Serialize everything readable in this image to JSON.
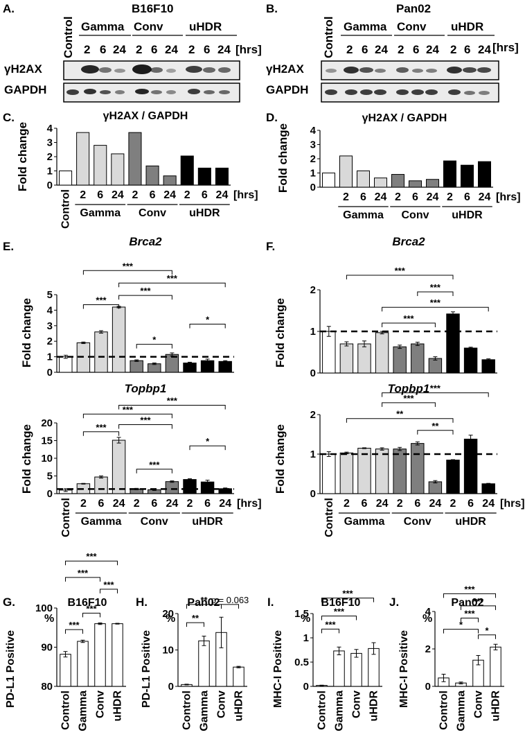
{
  "colors": {
    "white": "#ffffff",
    "light": "#d9d9d9",
    "mid": "#7f7f7f",
    "dark": "#000000"
  },
  "panels": {
    "A": {
      "letter": "A.",
      "cell": "B16F10"
    },
    "B": {
      "letter": "B.",
      "cell": "Pan02"
    },
    "C": {
      "letter": "C."
    },
    "D": {
      "letter": "D."
    },
    "E": {
      "letter": "E."
    },
    "F": {
      "letter": "F."
    },
    "G": {
      "letter": "G.",
      "title": "B16F10"
    },
    "H": {
      "letter": "H.",
      "title": "Pan02"
    },
    "I": {
      "letter": "I.",
      "title": "B16F10"
    },
    "J": {
      "letter": "J.",
      "title": "Pan02"
    }
  },
  "blot": {
    "control": "Control",
    "groups": [
      "Gamma",
      "Conv",
      "uHDR"
    ],
    "times": [
      "2",
      "6",
      "24"
    ],
    "unit": "[hrs]",
    "rows": [
      "γH2AX",
      "GAPDH"
    ]
  },
  "common": {
    "fold_label": "Fold change",
    "control": "Control",
    "groups": [
      "Gamma",
      "Conv",
      "uHDR"
    ],
    "times": [
      "2",
      "6",
      "24"
    ],
    "unit": "[hrs]",
    "pct": "%",
    "flow_cats": [
      "Control",
      "Gamma",
      "Conv",
      "uHDR"
    ]
  },
  "chart_data": [
    {
      "id": "C",
      "type": "bar",
      "title": "γH2AX / GAPDH",
      "ylabel": "Fold change",
      "ylim": [
        0,
        4
      ],
      "yticks": [
        0,
        1,
        2,
        3,
        4
      ],
      "categories": [
        "Control",
        "Gamma 2",
        "Gamma 6",
        "Gamma 24",
        "Conv 2",
        "Conv 6",
        "Conv 24",
        "uHDR 2",
        "uHDR 6",
        "uHDR 24"
      ],
      "values": [
        1.0,
        3.7,
        2.8,
        2.2,
        3.7,
        1.35,
        0.65,
        2.05,
        1.2,
        1.2
      ]
    },
    {
      "id": "D",
      "type": "bar",
      "title": "γH2AX / GAPDH",
      "ylabel": "Fold change",
      "ylim": [
        0,
        4
      ],
      "yticks": [
        0,
        1,
        2,
        3,
        4
      ],
      "categories": [
        "Control",
        "Gamma 2",
        "Gamma 6",
        "Gamma 24",
        "Conv 2",
        "Conv 6",
        "Conv 24",
        "uHDR 2",
        "uHDR 6",
        "uHDR 24"
      ],
      "values": [
        1.0,
        2.2,
        1.15,
        0.65,
        0.9,
        0.45,
        0.55,
        1.85,
        1.55,
        1.8
      ]
    },
    {
      "id": "E1",
      "type": "bar",
      "title": "Brca2",
      "ylabel": "Fold change",
      "ylim": [
        0,
        5
      ],
      "yticks": [
        0,
        1,
        2,
        3,
        4,
        5
      ],
      "ref_line": 1,
      "categories": [
        "Control",
        "Gamma 2",
        "Gamma 6",
        "Gamma 24",
        "Conv 2",
        "Conv 6",
        "Conv 24",
        "uHDR 2",
        "uHDR 6",
        "uHDR 24"
      ],
      "values": [
        1.0,
        1.9,
        2.6,
        4.2,
        0.75,
        0.55,
        1.15,
        0.6,
        0.75,
        0.7
      ],
      "errors": [
        0.1,
        0.05,
        0.08,
        0.05,
        0.05,
        0.05,
        0.1,
        0.05,
        0.1,
        0.05
      ],
      "significance": [
        {
          "a": 1,
          "b": 3,
          "label": "***",
          "y": 4.35
        },
        {
          "a": 4,
          "b": 6,
          "label": "*",
          "y": 1.8
        },
        {
          "a": 7,
          "b": 9,
          "label": "*",
          "y": 3.1
        },
        {
          "a": 3,
          "b": 6,
          "label": "***",
          "y": 4.95
        },
        {
          "a": 1,
          "b": 6,
          "label": "***",
          "y": 6.55
        },
        {
          "a": 3,
          "b": 9,
          "label": "***",
          "y": 5.75
        }
      ]
    },
    {
      "id": "E2",
      "type": "bar",
      "title": "Topbp1",
      "ylabel": "Fold change",
      "ylim": [
        0,
        20
      ],
      "yticks": [
        0,
        5,
        10,
        15,
        20
      ],
      "ref_line": 1.3,
      "categories": [
        "Control",
        "Gamma 2",
        "Gamma 6",
        "Gamma 24",
        "Conv 2",
        "Conv 6",
        "Conv 24",
        "uHDR 2",
        "uHDR 6",
        "uHDR 24"
      ],
      "values": [
        1.0,
        2.8,
        4.7,
        15.1,
        1.3,
        1.1,
        3.4,
        4.0,
        3.3,
        1.4
      ],
      "errors": [
        0.4,
        0.1,
        0.3,
        0.8,
        0.2,
        0.2,
        0.2,
        0.2,
        0.5,
        0.2
      ],
      "significance": [
        {
          "a": 1,
          "b": 3,
          "label": "***",
          "y": 17.5
        },
        {
          "a": 4,
          "b": 6,
          "label": "***",
          "y": 6.9
        },
        {
          "a": 7,
          "b": 9,
          "label": "*",
          "y": 13.5
        },
        {
          "a": 3,
          "b": 6,
          "label": "***",
          "y": 19.5
        },
        {
          "a": 1,
          "b": 6,
          "label": "***",
          "y": 22.5
        },
        {
          "a": 3,
          "b": 9,
          "label": "***",
          "y": 25.0
        }
      ]
    },
    {
      "id": "F1",
      "type": "bar",
      "title": "Brca2",
      "ylabel": "Fold change",
      "ylim": [
        0,
        2
      ],
      "yticks": [
        0,
        1,
        2
      ],
      "ref_line": 1,
      "categories": [
        "Control",
        "Gamma 2",
        "Gamma 6",
        "Gamma 24",
        "Conv 2",
        "Conv 6",
        "Conv 24",
        "uHDR 2",
        "uHDR 6",
        "uHDR 24"
      ],
      "values": [
        1.0,
        0.7,
        0.7,
        0.97,
        0.63,
        0.7,
        0.35,
        1.42,
        0.6,
        0.32
      ],
      "errors": [
        0.12,
        0.05,
        0.07,
        0.03,
        0.04,
        0.04,
        0.04,
        0.05,
        0.02,
        0.02
      ],
      "significance": [
        {
          "a": 3,
          "b": 6,
          "label": "***",
          "y": 1.2
        },
        {
          "a": 3,
          "b": 9,
          "label": "***",
          "y": 1.58
        },
        {
          "a": 5,
          "b": 7,
          "label": "***",
          "y": 1.95
        },
        {
          "a": 1,
          "b": 7,
          "label": "***",
          "y": 2.35
        }
      ]
    },
    {
      "id": "F2",
      "type": "bar",
      "title": "Topbp1",
      "ylabel": "Fold change",
      "ylim": [
        0,
        2
      ],
      "yticks": [
        0,
        1,
        2
      ],
      "ref_line": 1,
      "categories": [
        "Control",
        "Gamma 2",
        "Gamma 6",
        "Gamma 24",
        "Conv 2",
        "Conv 6",
        "Conv 24",
        "uHDR 2",
        "uHDR 6",
        "uHDR 24"
      ],
      "values": [
        1.0,
        1.03,
        1.15,
        1.13,
        1.13,
        1.27,
        0.3,
        0.85,
        1.38,
        0.25
      ],
      "errors": [
        0.06,
        0.02,
        0.01,
        0.03,
        0.04,
        0.04,
        0.03,
        0.01,
        0.1,
        0.01
      ],
      "significance": [
        {
          "a": 5,
          "b": 7,
          "label": "**",
          "y": 1.6
        },
        {
          "a": 1,
          "b": 7,
          "label": "**",
          "y": 1.9
        },
        {
          "a": 3,
          "b": 6,
          "label": "***",
          "y": 2.3
        },
        {
          "a": 3,
          "b": 9,
          "label": "***",
          "y": 2.55
        }
      ]
    },
    {
      "id": "G",
      "type": "bar",
      "title": "B16F10",
      "ylabel": "PD-L1 Positive",
      "ylim": [
        80,
        100
      ],
      "yticks": [
        80,
        90,
        100
      ],
      "categories": [
        "Control",
        "Gamma",
        "Conv",
        "uHDR"
      ],
      "values": [
        88.2,
        91.5,
        96.0,
        96.0
      ],
      "errors": [
        0.7,
        0.3,
        0.2,
        0.1
      ],
      "significance": [
        {
          "a": 0,
          "b": 1,
          "label": "***",
          "y": 94.5
        },
        {
          "a": 1,
          "b": 2,
          "label": "***",
          "y": 98.7
        },
        {
          "a": 2,
          "b": 3,
          "label": "***",
          "y": 104.8
        },
        {
          "a": 0,
          "b": 2,
          "label": "***",
          "y": 107.8
        },
        {
          "a": 0,
          "b": 3,
          "label": "***",
          "y": 112.0
        }
      ]
    },
    {
      "id": "H",
      "type": "bar",
      "title": "Pan02",
      "ylabel": "PD-L1 Positive",
      "ylim": [
        0,
        20
      ],
      "yticks": [
        0,
        10,
        20
      ],
      "categories": [
        "Control",
        "Gamma",
        "Conv",
        "uHDR"
      ],
      "values": [
        0.5,
        12.5,
        14.8,
        5.3
      ],
      "errors": [
        0.1,
        1.3,
        4.2,
        0.2
      ],
      "significance": [
        {
          "a": 0,
          "b": 1,
          "label": "**",
          "y": 17.5
        },
        {
          "a": 0,
          "b": 2,
          "label": "**",
          "y": 22.5
        },
        {
          "a": 2,
          "b": 3,
          "label": "p = 0.063",
          "y": 22.5
        }
      ]
    },
    {
      "id": "I",
      "type": "bar",
      "title": "B16F10",
      "ylabel": "MHC-I Positive",
      "ylim": [
        0,
        1.5
      ],
      "yticks": [
        0,
        0.5,
        1,
        1.5
      ],
      "categories": [
        "Control",
        "Gamma",
        "Conv",
        "uHDR"
      ],
      "values": [
        0.02,
        0.73,
        0.68,
        0.78
      ],
      "errors": [
        0.005,
        0.08,
        0.08,
        0.12
      ],
      "significance": [
        {
          "a": 0,
          "b": 1,
          "label": "***",
          "y": 1.18
        },
        {
          "a": 0,
          "b": 2,
          "label": "***",
          "y": 1.45
        },
        {
          "a": 0,
          "b": 3,
          "label": "***",
          "y": 1.82
        }
      ]
    },
    {
      "id": "J",
      "type": "bar",
      "title": "Pan02",
      "ylabel": "MHC-I Positive",
      "ylim": [
        0,
        4
      ],
      "yticks": [
        0,
        2,
        4
      ],
      "categories": [
        "Control",
        "Gamma",
        "Conv",
        "uHDR"
      ],
      "values": [
        0.45,
        0.18,
        1.4,
        2.1
      ],
      "errors": [
        0.2,
        0.05,
        0.25,
        0.15
      ],
      "significance": [
        {
          "a": 2,
          "b": 3,
          "label": "*",
          "y": 2.75
        },
        {
          "a": 0,
          "b": 2,
          "label": "*",
          "y": 3.05
        },
        {
          "a": 1,
          "b": 2,
          "label": "***",
          "y": 3.65
        },
        {
          "a": 1,
          "b": 3,
          "label": "***",
          "y": 4.3
        },
        {
          "a": 0,
          "b": 3,
          "label": "***",
          "y": 4.95
        }
      ]
    }
  ]
}
